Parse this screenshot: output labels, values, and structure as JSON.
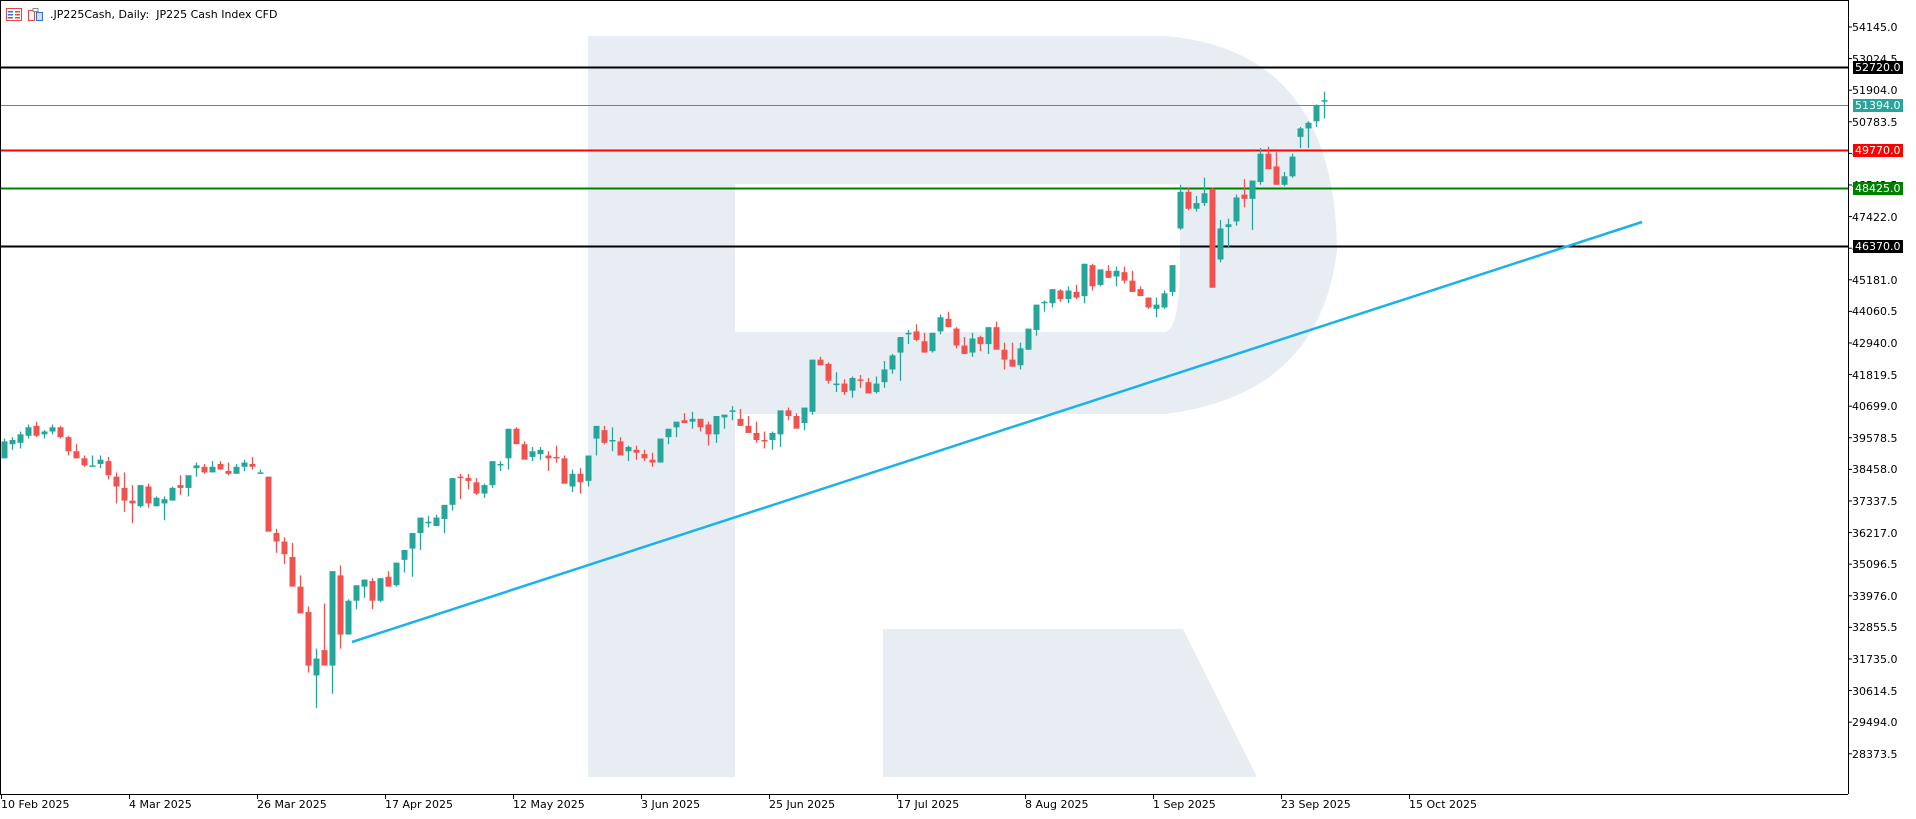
{
  "header": {
    "symbol": ".JP225Cash",
    "timeframe": "Daily",
    "title": ".JP225Cash, Daily:  JP225 Cash Index CFD",
    "icons": [
      "list-menu-icon",
      "chart-window-icon"
    ]
  },
  "colors": {
    "bull": "#26a69a",
    "bear": "#ef5350",
    "trendline": "#1ab2e8",
    "watermark": "#e8edf4",
    "axis": "#000000"
  },
  "price_axis": {
    "ticks": [
      "54145.0",
      "53024.5",
      "51904.0",
      "50783.5",
      "49663.0",
      "48542.5",
      "47422.0",
      "46301.5",
      "45181.0",
      "44060.5",
      "42940.0",
      "41819.5",
      "40699.0",
      "39578.5",
      "38458.0",
      "37337.5",
      "36217.0",
      "35096.5",
      "33976.0",
      "32855.5",
      "31735.0",
      "30614.5",
      "29494.0",
      "28373.5"
    ]
  },
  "levels": [
    {
      "name": "resistance-high",
      "value": "52720.0",
      "color": "#000000",
      "bg": "#000000"
    },
    {
      "name": "current-price",
      "value": "51394.0",
      "color": "#26a69a",
      "bg": "#26a69a"
    },
    {
      "name": "resistance",
      "value": "49770.0",
      "color": "#ff0000",
      "bg": "#ff0000"
    },
    {
      "name": "support",
      "value": "48425.0",
      "color": "#008000",
      "bg": "#008000"
    },
    {
      "name": "support-low",
      "value": "46370.0",
      "color": "#000000",
      "bg": "#000000"
    }
  ],
  "time_axis": {
    "labels": [
      "10 Feb 2025",
      "4 Mar 2025",
      "26 Mar 2025",
      "17 Apr 2025",
      "12 May 2025",
      "3 Jun 2025",
      "25 Jun 2025",
      "17 Jul 2025",
      "8 Aug 2025",
      "1 Sep 2025",
      "23 Sep 2025",
      "15 Oct 2025"
    ]
  },
  "chart_data": {
    "type": "candlestick",
    "title": ".JP225Cash, Daily: JP225 Cash Index CFD",
    "xlabel": "",
    "ylabel": "",
    "ylim": [
      27800,
      54700
    ],
    "grid": false,
    "x_tick_labels": [
      "10 Feb 2025",
      "4 Mar 2025",
      "26 Mar 2025",
      "17 Apr 2025",
      "12 May 2025",
      "3 Jun 2025",
      "25 Jun 2025",
      "17 Jul 2025",
      "8 Aug 2025",
      "1 Sep 2025",
      "23 Sep 2025",
      "15 Oct 2025"
    ],
    "y_tick_labels": [
      "54145.0",
      "53024.5",
      "51904.0",
      "50783.5",
      "49663.0",
      "48542.5",
      "47422.0",
      "46301.5",
      "45181.0",
      "44060.5",
      "42940.0",
      "41819.5",
      "40699.0",
      "39578.5",
      "38458.0",
      "37337.5",
      "36217.0",
      "35096.5",
      "33976.0",
      "32855.5",
      "31735.0",
      "30614.5",
      "29494.0",
      "28373.5"
    ],
    "horizontal_levels": [
      52720.0,
      51394.0,
      49770.0,
      48425.0,
      46370.0
    ],
    "trendline": {
      "from": {
        "date": "7 Apr 2025",
        "price": 32650
      },
      "to": {
        "date": "~6 Nov 2025 (projected)",
        "price": 47650
      }
    },
    "ohlc": [
      [
        38850,
        39550,
        38850,
        39450
      ],
      [
        39350,
        39600,
        39150,
        39500
      ],
      [
        39400,
        39800,
        39200,
        39700
      ],
      [
        39650,
        40050,
        39550,
        39950
      ],
      [
        40000,
        40150,
        39600,
        39650
      ],
      [
        39700,
        39850,
        39550,
        39800
      ],
      [
        39800,
        40050,
        39700,
        39950
      ],
      [
        39950,
        40000,
        39550,
        39600
      ],
      [
        39600,
        39650,
        38950,
        39100
      ],
      [
        39100,
        39350,
        38850,
        38850
      ],
      [
        38850,
        38950,
        38550,
        38600
      ],
      [
        38600,
        38950,
        38600,
        38600
      ],
      [
        38650,
        38950,
        38500,
        38800
      ],
      [
        38750,
        38900,
        38100,
        38250
      ],
      [
        38200,
        38350,
        37250,
        37850
      ],
      [
        37800,
        38350,
        36950,
        37350
      ],
      [
        37350,
        37900,
        36550,
        37250
      ],
      [
        37150,
        37850,
        37100,
        37900
      ],
      [
        37850,
        37950,
        37100,
        37250
      ],
      [
        37150,
        37500,
        37150,
        37450
      ],
      [
        37250,
        37500,
        36650,
        37400
      ],
      [
        37350,
        37850,
        37350,
        37800
      ],
      [
        37900,
        38250,
        37550,
        37800
      ],
      [
        37800,
        38050,
        37500,
        38250
      ],
      [
        38500,
        38700,
        38200,
        38600
      ],
      [
        38550,
        38650,
        38300,
        38350
      ],
      [
        38350,
        38750,
        38350,
        38550
      ],
      [
        38650,
        38750,
        38450,
        38450
      ],
      [
        38400,
        38700,
        38250,
        38300
      ],
      [
        38300,
        38650,
        38350,
        38550
      ],
      [
        38550,
        38800,
        38400,
        38700
      ],
      [
        38650,
        38900,
        38450,
        38550
      ],
      [
        38350,
        38450,
        38350,
        38350
      ],
      [
        38200,
        38200,
        36350,
        36250
      ],
      [
        36200,
        36350,
        35500,
        35900
      ],
      [
        35900,
        36050,
        35100,
        35450
      ],
      [
        35350,
        35850,
        34300,
        34300
      ],
      [
        34300,
        34700,
        33400,
        33350
      ],
      [
        33400,
        33600,
        31250,
        31500
      ],
      [
        31150,
        32100,
        30000,
        31750
      ],
      [
        32050,
        33700,
        31800,
        31500
      ],
      [
        31500,
        34850,
        30500,
        34850
      ],
      [
        34700,
        35050,
        32100,
        32600
      ],
      [
        32600,
        33850,
        32650,
        33800
      ],
      [
        33800,
        34300,
        33500,
        34350
      ],
      [
        34300,
        34550,
        33900,
        34550
      ],
      [
        34500,
        34600,
        33500,
        33800
      ],
      [
        33800,
        34450,
        33750,
        34600
      ],
      [
        34650,
        34850,
        34300,
        34300
      ],
      [
        34350,
        35150,
        34300,
        35150
      ],
      [
        35250,
        35450,
        34800,
        35600
      ],
      [
        35650,
        35800,
        34650,
        36200
      ],
      [
        36200,
        36350,
        35600,
        36750
      ],
      [
        36600,
        36800,
        36400,
        36600
      ],
      [
        36450,
        36850,
        36450,
        36750
      ],
      [
        36700,
        37150,
        36200,
        37200
      ],
      [
        37200,
        37750,
        37000,
        38150
      ],
      [
        38200,
        38300,
        37400,
        38150
      ],
      [
        38150,
        38300,
        37750,
        38050
      ],
      [
        38000,
        38150,
        37550,
        37600
      ],
      [
        37600,
        37950,
        37450,
        37900
      ],
      [
        37900,
        38400,
        37800,
        38750
      ],
      [
        38650,
        38750,
        38400,
        38650
      ],
      [
        38850,
        38900,
        38450,
        39900
      ],
      [
        39900,
        39950,
        39600,
        39350
      ],
      [
        39350,
        39450,
        38850,
        38800
      ],
      [
        38900,
        39250,
        38750,
        39100
      ],
      [
        39000,
        39250,
        38800,
        39150
      ],
      [
        38950,
        39100,
        38400,
        38850
      ],
      [
        38900,
        39300,
        38700,
        38850
      ],
      [
        38850,
        38950,
        38300,
        37950
      ],
      [
        37850,
        38450,
        37650,
        38300
      ],
      [
        38300,
        38500,
        37600,
        38000
      ],
      [
        38050,
        38650,
        37850,
        38950
      ],
      [
        39550,
        39650,
        38950,
        40000
      ],
      [
        39850,
        40000,
        39350,
        39400
      ],
      [
        39450,
        39950,
        39100,
        39500
      ],
      [
        39450,
        39600,
        38950,
        38950
      ],
      [
        39100,
        39300,
        38750,
        39250
      ],
      [
        39150,
        39300,
        38800,
        39050
      ],
      [
        39000,
        39150,
        38750,
        38850
      ],
      [
        38800,
        39050,
        38550,
        38700
      ],
      [
        38700,
        39400,
        38700,
        39550
      ],
      [
        39600,
        39850,
        39350,
        39900
      ],
      [
        39950,
        40150,
        39600,
        40150
      ],
      [
        40200,
        40450,
        40100,
        40100
      ],
      [
        40150,
        40500,
        39900,
        40250
      ],
      [
        40250,
        40250,
        39800,
        39950
      ],
      [
        40050,
        40150,
        39300,
        39700
      ],
      [
        39700,
        40050,
        39400,
        40350
      ],
      [
        40300,
        40350,
        39900,
        40400
      ],
      [
        40500,
        40700,
        40200,
        40550
      ],
      [
        40250,
        40600,
        40050,
        40000
      ],
      [
        40000,
        40350,
        39800,
        39750
      ],
      [
        39750,
        40150,
        39400,
        39500
      ],
      [
        39500,
        39800,
        39200,
        39450
      ],
      [
        39500,
        39800,
        39150,
        39750
      ],
      [
        39700,
        39850,
        39250,
        40550
      ],
      [
        40550,
        40650,
        40200,
        40350
      ],
      [
        40350,
        40450,
        39950,
        39900
      ],
      [
        40100,
        40500,
        39850,
        40650
      ],
      [
        40500,
        41250,
        40400,
        42350
      ],
      [
        42350,
        42450,
        42150,
        42150
      ],
      [
        42200,
        42250,
        41500,
        41600
      ],
      [
        41500,
        41900,
        41200,
        41500
      ],
      [
        41500,
        41650,
        41100,
        41200
      ],
      [
        41250,
        41750,
        41000,
        41700
      ],
      [
        41650,
        41800,
        41350,
        41600
      ],
      [
        41550,
        41700,
        41150,
        41150
      ],
      [
        41200,
        41750,
        41150,
        41500
      ],
      [
        41550,
        42300,
        41350,
        42000
      ],
      [
        42000,
        42550,
        41850,
        42500
      ],
      [
        42600,
        42650,
        41600,
        43150
      ],
      [
        43300,
        43400,
        42900,
        43300
      ],
      [
        43350,
        43600,
        43000,
        43050
      ],
      [
        43000,
        43300,
        42600,
        42600
      ],
      [
        42650,
        43150,
        42600,
        43300
      ],
      [
        43350,
        43950,
        43250,
        43850
      ],
      [
        43800,
        44050,
        43500,
        43500
      ],
      [
        43450,
        43500,
        42750,
        42850
      ],
      [
        42850,
        43150,
        42550,
        42550
      ],
      [
        42600,
        43300,
        42450,
        43100
      ],
      [
        43150,
        43200,
        42650,
        42900
      ],
      [
        42900,
        43100,
        42550,
        43500
      ],
      [
        43500,
        43700,
        42950,
        42700
      ],
      [
        42700,
        42950,
        42000,
        42350
      ],
      [
        42350,
        42950,
        42100,
        42100
      ],
      [
        42150,
        42950,
        42000,
        42750
      ],
      [
        42700,
        43200,
        42700,
        43450
      ],
      [
        43400,
        43800,
        43200,
        44300
      ],
      [
        44350,
        44450,
        44050,
        44400
      ],
      [
        44350,
        44600,
        44200,
        44850
      ],
      [
        44800,
        44850,
        44400,
        44500
      ],
      [
        44500,
        44950,
        44350,
        44800
      ],
      [
        44750,
        45000,
        44500,
        44550
      ],
      [
        44600,
        45150,
        44350,
        45750
      ],
      [
        45700,
        45750,
        44800,
        44950
      ],
      [
        45000,
        45500,
        44950,
        45550
      ],
      [
        45500,
        45700,
        45250,
        45250
      ],
      [
        45300,
        45650,
        44950,
        45500
      ],
      [
        45450,
        45650,
        45050,
        45150
      ],
      [
        45150,
        45500,
        44750,
        44750
      ],
      [
        44850,
        44950,
        44650,
        44600
      ],
      [
        44550,
        44550,
        44150,
        44200
      ],
      [
        44150,
        44550,
        43850,
        44300
      ],
      [
        44200,
        44800,
        44150,
        44700
      ],
      [
        44750,
        45250,
        44600,
        45700
      ],
      [
        47000,
        48550,
        46950,
        48300
      ],
      [
        48300,
        48450,
        47650,
        47700
      ],
      [
        47700,
        48150,
        47600,
        47900
      ],
      [
        47900,
        48800,
        47800,
        48250
      ],
      [
        48400,
        48450,
        44900,
        44900
      ],
      [
        45900,
        47300,
        45800,
        47000
      ],
      [
        47050,
        47350,
        46300,
        47150
      ],
      [
        47250,
        48200,
        47100,
        48100
      ],
      [
        48200,
        48750,
        47750,
        48050
      ],
      [
        48050,
        48500,
        46950,
        48700
      ],
      [
        48650,
        49850,
        48550,
        49650
      ],
      [
        49650,
        49900,
        49300,
        49100
      ],
      [
        49200,
        49700,
        48750,
        48550
      ],
      [
        48550,
        49000,
        48500,
        48850
      ],
      [
        48850,
        49650,
        48800,
        49550
      ],
      [
        50250,
        50600,
        49850,
        50550
      ],
      [
        50550,
        50800,
        49850,
        50750
      ],
      [
        50800,
        51400,
        50600,
        51350
      ],
      [
        51550,
        51850,
        50900,
        51550
      ]
    ]
  }
}
